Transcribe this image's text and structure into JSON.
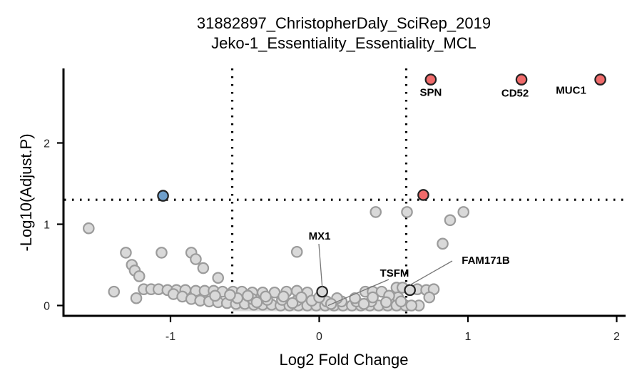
{
  "chart_data": {
    "type": "scatter",
    "title": "31882897_ChristopherDaly_SciRep_2019",
    "subtitle": "Jeko-1_Essentiality_Essentiality_MCL",
    "xlabel": "Log2 Fold Change",
    "ylabel": "-Log10(Adjust.P)",
    "xlim": [
      -1.75,
      2.05
    ],
    "ylim": [
      -0.07,
      2.9
    ],
    "x_ticks": [
      -1,
      0,
      1,
      2
    ],
    "x_tick_labels": [
      "-1",
      "0",
      "1",
      "2"
    ],
    "y_ticks": [
      0,
      1,
      2
    ],
    "y_tick_labels": [
      "0",
      "1",
      "2"
    ],
    "thresholds": {
      "x": [
        -0.585,
        0.585
      ],
      "y": 1.301
    },
    "colors": {
      "up": "#f06b6b",
      "down": "#6f9fcb",
      "ns": "#d9d9d9",
      "ns_stroke": "#9b9b9b",
      "highlight_stroke": "#222222"
    },
    "series": [
      {
        "name": "",
        "color": "#f06b6b",
        "points": [
          {
            "x": 0.75,
            "y": 2.78
          },
          {
            "x": 1.36,
            "y": 2.78
          },
          {
            "x": 1.89,
            "y": 2.78
          },
          {
            "x": 0.7,
            "y": 1.36
          }
        ]
      },
      {
        "name": "",
        "color": "#6f9fcb",
        "points": [
          {
            "x": -1.05,
            "y": 1.35
          }
        ]
      },
      {
        "name": "",
        "color": "#d9d9d9",
        "points": [
          {
            "x": -1.55,
            "y": 0.95
          },
          {
            "x": -1.3,
            "y": 0.65
          },
          {
            "x": -1.06,
            "y": 0.65
          },
          {
            "x": -0.86,
            "y": 0.65
          },
          {
            "x": -0.83,
            "y": 0.57
          },
          {
            "x": -0.78,
            "y": 0.46
          },
          {
            "x": -1.26,
            "y": 0.5
          },
          {
            "x": -1.24,
            "y": 0.43
          },
          {
            "x": -1.21,
            "y": 0.36
          },
          {
            "x": -0.68,
            "y": 0.34
          },
          {
            "x": -1.38,
            "y": 0.17
          },
          {
            "x": -1.23,
            "y": 0.09
          },
          {
            "x": -1.18,
            "y": 0.2
          },
          {
            "x": -1.13,
            "y": 0.2
          },
          {
            "x": -1.08,
            "y": 0.2
          },
          {
            "x": -1.02,
            "y": 0.19
          },
          {
            "x": -0.96,
            "y": 0.19
          },
          {
            "x": -0.9,
            "y": 0.19
          },
          {
            "x": -0.83,
            "y": 0.18
          },
          {
            "x": -0.77,
            "y": 0.18
          },
          {
            "x": -0.71,
            "y": 0.18
          },
          {
            "x": -0.65,
            "y": 0.17
          },
          {
            "x": -0.58,
            "y": 0.17
          },
          {
            "x": -0.52,
            "y": 0.17
          },
          {
            "x": -0.45,
            "y": 0.16
          },
          {
            "x": -0.38,
            "y": 0.16
          },
          {
            "x": -0.3,
            "y": 0.16
          },
          {
            "x": -0.22,
            "y": 0.17
          },
          {
            "x": -0.15,
            "y": 0.18
          },
          {
            "x": -0.08,
            "y": 0.16
          },
          {
            "x": -0.15,
            "y": 0.66
          },
          {
            "x": 0.38,
            "y": 1.15
          },
          {
            "x": 0.59,
            "y": 1.15
          },
          {
            "x": 0.97,
            "y": 1.15
          },
          {
            "x": 0.88,
            "y": 1.05
          },
          {
            "x": 0.83,
            "y": 0.76
          },
          {
            "x": 0.31,
            "y": 0.17
          },
          {
            "x": 0.36,
            "y": 0.17
          },
          {
            "x": 0.42,
            "y": 0.17
          },
          {
            "x": 0.52,
            "y": 0.22
          },
          {
            "x": 0.56,
            "y": 0.22
          },
          {
            "x": 0.66,
            "y": 0.2
          },
          {
            "x": 0.72,
            "y": 0.19
          },
          {
            "x": 0.77,
            "y": 0.2
          },
          {
            "x": 0.74,
            "y": 0.1
          },
          {
            "x": 0.67,
            "y": 0.0
          },
          {
            "x": 0.53,
            "y": 0.1
          },
          {
            "x": 0.47,
            "y": 0.12
          },
          {
            "x": -0.98,
            "y": 0.14
          },
          {
            "x": -0.92,
            "y": 0.11
          },
          {
            "x": -0.86,
            "y": 0.08
          },
          {
            "x": -0.8,
            "y": 0.06
          },
          {
            "x": -0.74,
            "y": 0.05
          },
          {
            "x": -0.68,
            "y": 0.04
          },
          {
            "x": -0.62,
            "y": 0.03
          },
          {
            "x": -0.56,
            "y": 0.02
          },
          {
            "x": -0.5,
            "y": 0.02
          },
          {
            "x": -0.44,
            "y": 0.01
          },
          {
            "x": -0.38,
            "y": 0.01
          },
          {
            "x": -0.32,
            "y": 0.01
          },
          {
            "x": -0.26,
            "y": 0.0
          },
          {
            "x": -0.2,
            "y": 0.0
          },
          {
            "x": -0.14,
            "y": 0.0
          },
          {
            "x": -0.08,
            "y": 0.0
          },
          {
            "x": -0.02,
            "y": 0.0
          },
          {
            "x": 0.04,
            "y": 0.0
          },
          {
            "x": 0.1,
            "y": 0.0
          },
          {
            "x": 0.16,
            "y": 0.0
          },
          {
            "x": 0.22,
            "y": 0.0
          },
          {
            "x": 0.28,
            "y": 0.0
          },
          {
            "x": 0.34,
            "y": 0.0
          },
          {
            "x": 0.4,
            "y": 0.0
          },
          {
            "x": 0.46,
            "y": 0.0
          },
          {
            "x": 0.52,
            "y": 0.0
          },
          {
            "x": 0.58,
            "y": 0.0
          },
          {
            "x": 0.62,
            "y": 0.0
          },
          {
            "x": -0.55,
            "y": 0.09
          },
          {
            "x": -0.45,
            "y": 0.08
          },
          {
            "x": -0.35,
            "y": 0.07
          },
          {
            "x": -0.25,
            "y": 0.07
          },
          {
            "x": -0.15,
            "y": 0.06
          },
          {
            "x": -0.05,
            "y": 0.06
          },
          {
            "x": 0.05,
            "y": 0.05
          },
          {
            "x": 0.15,
            "y": 0.05
          },
          {
            "x": 0.25,
            "y": 0.05
          },
          {
            "x": 0.35,
            "y": 0.05
          },
          {
            "x": 0.45,
            "y": 0.04
          },
          {
            "x": -0.7,
            "y": 0.12
          },
          {
            "x": -0.6,
            "y": 0.13
          },
          {
            "x": -0.48,
            "y": 0.12
          },
          {
            "x": -0.36,
            "y": 0.11
          },
          {
            "x": -0.24,
            "y": 0.11
          },
          {
            "x": -0.12,
            "y": 0.1
          },
          {
            "x": 0.0,
            "y": 0.1
          },
          {
            "x": 0.12,
            "y": 0.09
          },
          {
            "x": 0.24,
            "y": 0.09
          },
          {
            "x": 0.36,
            "y": 0.1
          },
          {
            "x": -0.42,
            "y": 0.04
          },
          {
            "x": -0.18,
            "y": 0.03
          },
          {
            "x": 0.08,
            "y": 0.02
          },
          {
            "x": 0.3,
            "y": 0.02
          },
          {
            "x": 0.55,
            "y": 0.05
          }
        ]
      }
    ],
    "highlighted": [
      {
        "x": 0.02,
        "y": 0.17
      },
      {
        "x": 0.61,
        "y": 0.19
      }
    ],
    "annotations": [
      {
        "text": "SPN",
        "x": 0.75,
        "y": 2.78
      },
      {
        "text": "CD52",
        "x": 1.36,
        "y": 2.78
      },
      {
        "text": "MUC1",
        "x": 1.89,
        "y": 2.78
      },
      {
        "text": "MX1",
        "x": 0.02,
        "y": 0.17
      },
      {
        "text": "TSFM",
        "x": 0.06,
        "y": 0.0
      },
      {
        "text": "FAM171B",
        "x": 0.61,
        "y": 0.19
      }
    ]
  }
}
